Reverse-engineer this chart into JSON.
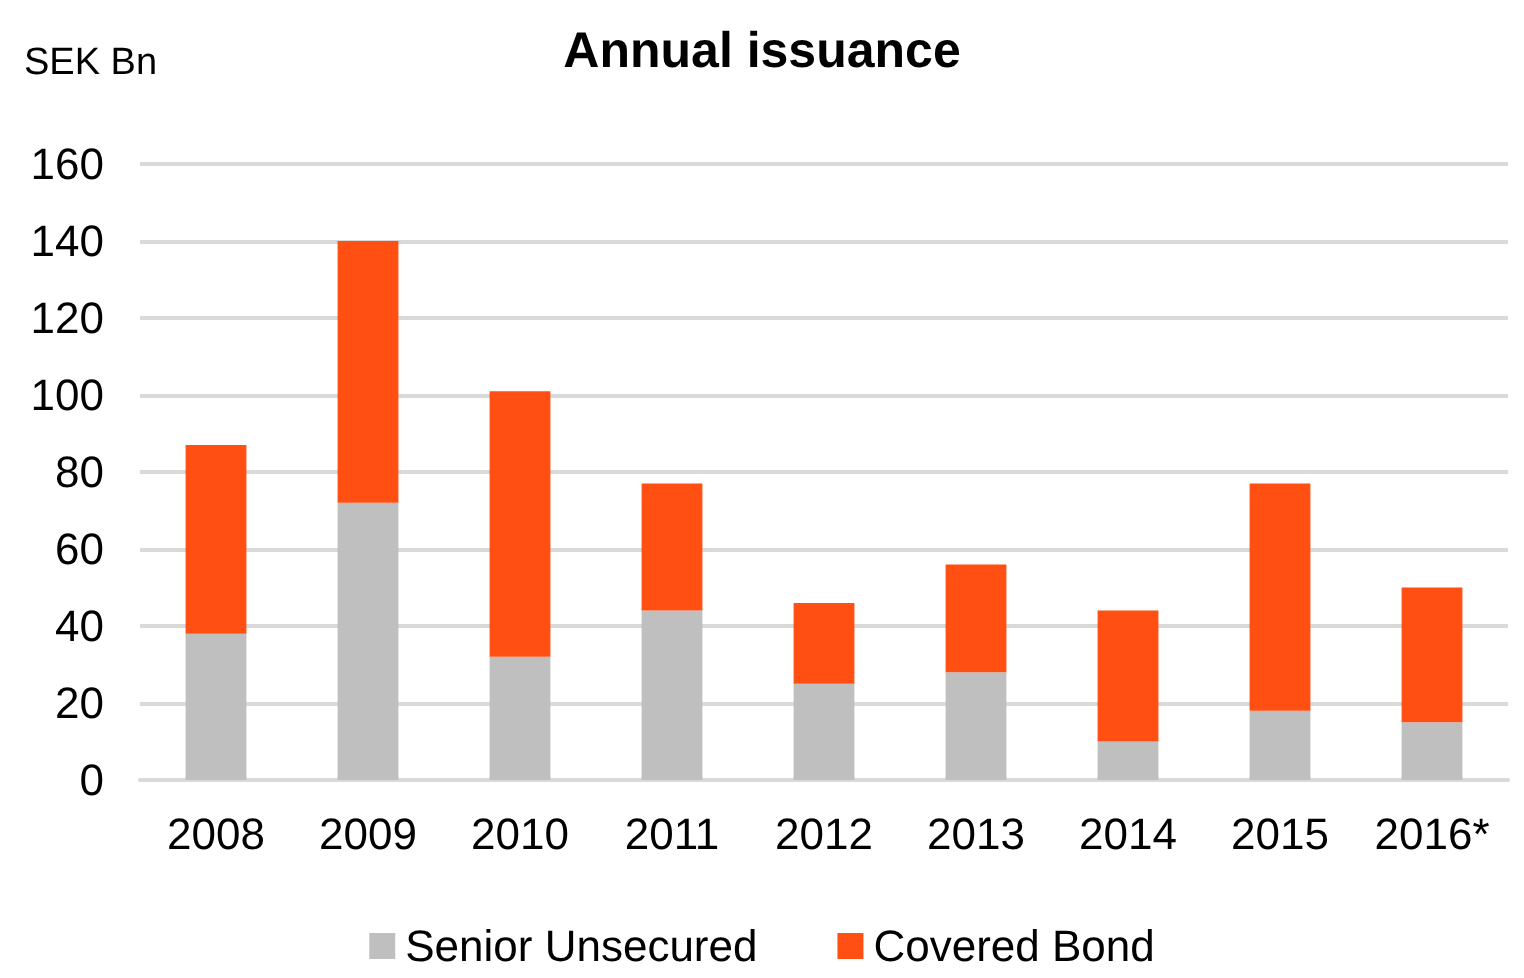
{
  "chart_data": {
    "type": "bar",
    "title": "Annual issuance",
    "ylabel": "SEK Bn",
    "stacked": true,
    "categories": [
      "2008",
      "2009",
      "2010",
      "2011",
      "2012",
      "2013",
      "2014",
      "2015",
      "2016*"
    ],
    "series": [
      {
        "name": "Senior Unsecured",
        "color": "#bfbfbf",
        "values": [
          38,
          72,
          32,
          44,
          25,
          28,
          10,
          18,
          15
        ]
      },
      {
        "name": "Covered Bond",
        "color": "#ff4f12",
        "values": [
          49,
          68,
          69,
          33,
          21,
          28,
          34,
          59,
          35
        ]
      }
    ],
    "ylim": [
      0,
      160
    ],
    "yticks": [
      0,
      20,
      40,
      60,
      80,
      100,
      120,
      140,
      160
    ],
    "grid": "y",
    "legend": "bottom"
  }
}
